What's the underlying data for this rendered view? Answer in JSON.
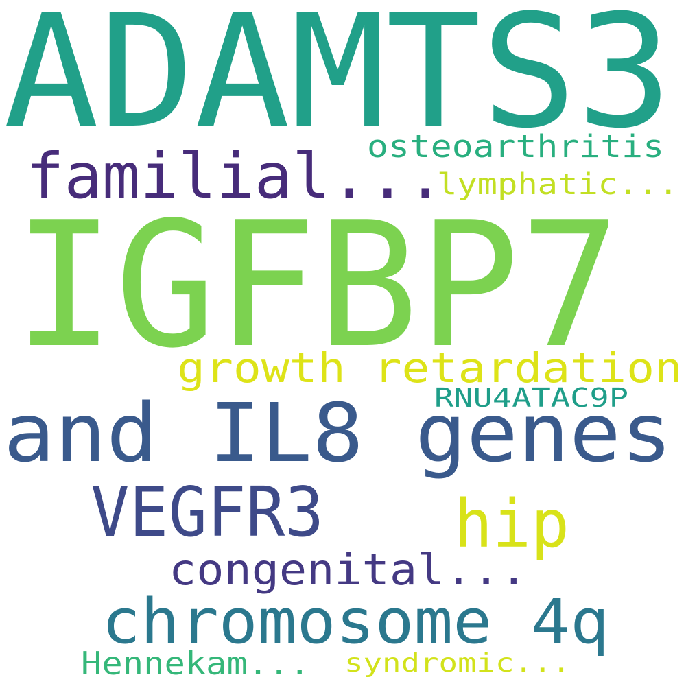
{
  "words": [
    {
      "text": "ADAMTS3",
      "color": "#21a089",
      "rank": 1
    },
    {
      "text": "IGFBP7",
      "color": "#7cd250",
      "rank": 2
    },
    {
      "text": "and IL8 genes",
      "color": "#3a5a8c",
      "rank": 3
    },
    {
      "text": "familial...",
      "color": "#472c7a",
      "rank": 4
    },
    {
      "text": "VEGFR3",
      "color": "#3e4a89",
      "rank": 5
    },
    {
      "text": "chromosome 4q",
      "color": "#2b788e",
      "rank": 6
    },
    {
      "text": "hip",
      "color": "#d8e219",
      "rank": 7
    },
    {
      "text": "growth retardation",
      "color": "#dde318",
      "rank": 8
    },
    {
      "text": "congenital...",
      "color": "#443983",
      "rank": 9
    },
    {
      "text": "osteoarthritis",
      "color": "#29af7f",
      "rank": 10
    },
    {
      "text": "lymphatic...",
      "color": "#c2df23",
      "rank": 11
    },
    {
      "text": "RNU4ATAC9P",
      "color": "#1f9e89",
      "rank": 12
    },
    {
      "text": "Hennekam...",
      "color": "#35b779",
      "rank": 13
    },
    {
      "text": "syndromic...",
      "color": "#d2e21b",
      "rank": 14
    }
  ]
}
